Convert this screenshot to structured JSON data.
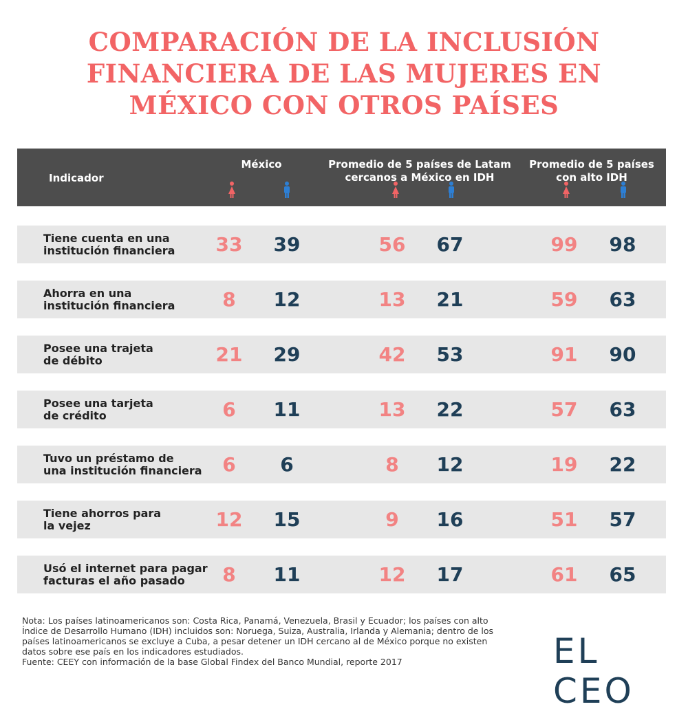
{
  "title": {
    "line1": "COMPARACIÓN DE LA INCLUSIÓN",
    "line2": "FINANCIERA DE LAS MUJERES EN",
    "line3": "MÉXICO CON OTROS PAÍSES"
  },
  "header": {
    "indicator": "Indicador",
    "group1": "México",
    "group2_line1": "Promedio de 5 países de Latam",
    "group2_line2": "cercanos a México en IDH",
    "group3_line1": "Promedio de 5 países",
    "group3_line2": "con alto IDH"
  },
  "colors": {
    "female": "#f28383",
    "male": "#1f3f57",
    "female_icon": "#f26465",
    "male_icon": "#2d7fd4",
    "title": "#f26465",
    "header_bg": "#4d4d4d",
    "row_bg": "#e7e7e7"
  },
  "icons": {
    "female": "woman-icon",
    "male": "man-icon"
  },
  "chart_data": {
    "type": "table",
    "title": "COMPARACIÓN DE LA INCLUSIÓN FINANCIERA DE LAS MUJERES EN MÉXICO CON OTROS PAÍSES",
    "columns": [
      "México",
      "Promedio de 5 países de Latam cercanos a México en IDH",
      "Promedio de 5 países con alto IDH"
    ],
    "rows": [
      {
        "label1": "Tiene cuenta en una",
        "label2": "institución financiera",
        "values": [
          "33",
          "39",
          "56",
          "67",
          "99",
          "98"
        ]
      },
      {
        "label1": "Ahorra en una",
        "label2": "institución financiera",
        "values": [
          "8",
          "12",
          "13",
          "21",
          "59",
          "63"
        ]
      },
      {
        "label1": "Posee una trajeta",
        "label2": "de débito",
        "values": [
          "21",
          "29",
          "42",
          "53",
          "91",
          "90"
        ]
      },
      {
        "label1": "Posee una tarjeta",
        "label2": "de crédito",
        "values": [
          "6",
          "11",
          "13",
          "22",
          "57",
          "63"
        ]
      },
      {
        "label1": "Tuvo un préstamo de",
        "label2": "una institución financiera",
        "values": [
          "6",
          "6",
          "8",
          "12",
          "19",
          "22"
        ]
      },
      {
        "label1": "Tiene ahorros para",
        "label2": "la vejez",
        "values": [
          "12",
          "15",
          "9",
          "16",
          "51",
          "57"
        ]
      },
      {
        "label1": "Usó el internet para pagar",
        "label2": "facturas el año pasado",
        "values": [
          "8",
          "11",
          "12",
          "17",
          "61",
          "65"
        ]
      }
    ]
  },
  "note": {
    "line1": "Nota: Los países latinoamericanos son: Costa Rica, Panamá, Venezuela, Brasil y Ecuador; los países con alto",
    "line2": "Índice de Desarrollo Humano (IDH) incluidos son: Noruega, Suiza, Australia, Irlanda y Alemania; dentro de los",
    "line3": "países latinoamericanos se excluye a Cuba, a pesar detener un IDH cercano al de México porque no existen",
    "line4": "datos sobre ese país en los indicadores estudiados.",
    "line5": "Fuente: CEEY con información de la base Global Findex del Banco Mundial, reporte 2017"
  },
  "logo": "EL CEO"
}
